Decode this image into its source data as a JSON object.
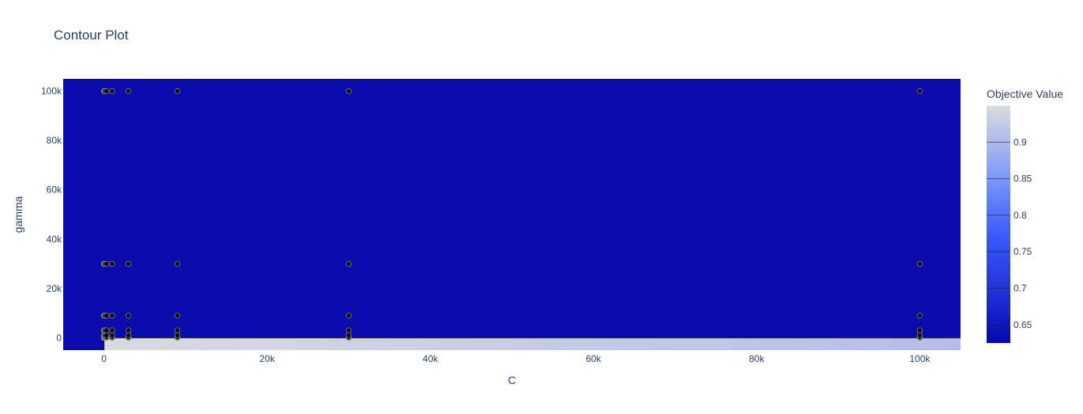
{
  "chart_data": {
    "type": "contour",
    "title": "Contour Plot",
    "xlabel": "C",
    "ylabel": "gamma",
    "xlim": [
      -5000,
      105000
    ],
    "ylim": [
      -5000,
      105000
    ],
    "x_ticks": [
      0,
      20000,
      40000,
      60000,
      80000,
      100000
    ],
    "x_tick_labels": [
      "0",
      "20k",
      "40k",
      "60k",
      "80k",
      "100k"
    ],
    "y_ticks": [
      0,
      20000,
      40000,
      60000,
      80000,
      100000
    ],
    "y_tick_labels": [
      "0",
      "20k",
      "40k",
      "60k",
      "80k",
      "100k"
    ],
    "grid": false,
    "contour_region_high": {
      "x_min": 0,
      "x_max": 105000,
      "y_min": -5000,
      "y_max": 0,
      "value_at_x0": 0.95,
      "value_at_xmax": 0.83
    },
    "contour_region_low_value": 0.625,
    "colorbar": {
      "title": "Objective Value",
      "range": [
        0.625,
        0.95
      ],
      "ticks": [
        0.65,
        0.7,
        0.75,
        0.8,
        0.85,
        0.9
      ],
      "tick_labels": [
        "0.65",
        "0.7",
        "0.75",
        "0.8",
        "0.85",
        "0.9"
      ],
      "colorscale": [
        "#0508b0",
        "#1f2fd6",
        "#3b5afb",
        "#6e8df9",
        "#a4b4f0",
        "#dcdcdc"
      ]
    },
    "points": {
      "C_values": [
        0.1,
        1,
        3,
        10,
        30,
        100,
        300,
        1000,
        3000,
        9000,
        30000,
        100000
      ],
      "gamma_values": [
        0.1,
        1,
        3,
        10,
        30,
        100,
        300,
        1000,
        3000,
        9000,
        30000,
        100000
      ],
      "marker_color": "#000000",
      "marker_edge": "#888888"
    }
  }
}
